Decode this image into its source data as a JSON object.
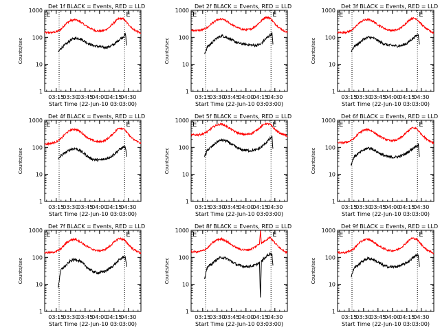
{
  "figure": {
    "xlabel": "Start Time (22-Jun-10 03:03:00)",
    "ylabel": "Counts/sec",
    "y_ticks": [
      1,
      10,
      100,
      1000
    ],
    "y_tick_labels": [
      "1",
      "10",
      "100",
      "1000"
    ],
    "x_tick_labels": [
      "03:15",
      "03:30",
      "03:45",
      "04:00",
      "04:15",
      "04:30"
    ],
    "marker_left": "E",
    "marker_right": "E",
    "colors": {
      "events": "#000000",
      "lld": "#ff0000",
      "markers": "#000000"
    }
  },
  "chart_data": [
    {
      "type": "line",
      "title": "Det 1f BLACK = Events, RED = LLD",
      "ylim": [
        1,
        1000
      ],
      "yscale": "log",
      "xlim": [
        "03:03",
        "04:43"
      ],
      "vlines": [
        "03:18",
        "04:26"
      ],
      "x": [
        "03:17",
        "03:20",
        "03:25",
        "03:30",
        "03:35",
        "03:40",
        "03:45",
        "03:50",
        "03:55",
        "04:00",
        "04:05",
        "04:10",
        "04:15",
        "04:20",
        "04:25",
        "04:27",
        "04:28"
      ],
      "series": [
        {
          "name": "LLD",
          "color": "#ff0000",
          "x": [
            "03:03",
            "03:10",
            "03:15",
            "03:20",
            "03:25",
            "03:30",
            "03:35",
            "03:40",
            "03:45",
            "03:50",
            "03:55",
            "04:00",
            "04:05",
            "04:10",
            "04:15",
            "04:20",
            "04:25",
            "04:30",
            "04:35",
            "04:40",
            "04:43"
          ],
          "values": [
            150,
            150,
            160,
            200,
            320,
            420,
            450,
            380,
            280,
            220,
            180,
            170,
            180,
            230,
            350,
            500,
            480,
            300,
            200,
            160,
            140
          ]
        },
        {
          "name": "Events",
          "color": "#000000",
          "values": [
            28,
            40,
            55,
            80,
            95,
            90,
            70,
            55,
            48,
            45,
            42,
            45,
            55,
            80,
            110,
            130,
            50
          ]
        }
      ]
    },
    {
      "type": "line",
      "title": "Det 2f BLACK = Events, RED = LLD",
      "ylim": [
        1,
        1000
      ],
      "yscale": "log",
      "xlim": [
        "03:03",
        "04:43"
      ],
      "vlines": [
        "03:18",
        "04:26"
      ],
      "x": [
        "03:17",
        "03:20",
        "03:25",
        "03:30",
        "03:35",
        "03:40",
        "03:45",
        "03:50",
        "03:55",
        "04:00",
        "04:05",
        "04:10",
        "04:15",
        "04:20",
        "04:25",
        "04:27",
        "04:28"
      ],
      "series": [
        {
          "name": "LLD",
          "color": "#ff0000",
          "x": [
            "03:03",
            "03:10",
            "03:15",
            "03:20",
            "03:25",
            "03:30",
            "03:35",
            "03:40",
            "03:45",
            "03:50",
            "03:55",
            "04:00",
            "04:05",
            "04:10",
            "04:15",
            "04:20",
            "04:25",
            "04:30",
            "04:35",
            "04:40",
            "04:43"
          ],
          "values": [
            180,
            180,
            190,
            230,
            340,
            440,
            470,
            400,
            300,
            240,
            200,
            190,
            200,
            260,
            380,
            560,
            520,
            320,
            220,
            170,
            150
          ]
        },
        {
          "name": "Events",
          "color": "#000000",
          "values": [
            25,
            45,
            65,
            95,
            115,
            100,
            80,
            65,
            58,
            55,
            52,
            50,
            55,
            85,
            120,
            140,
            55
          ]
        }
      ]
    },
    {
      "type": "line",
      "title": "Det 3f BLACK = Events, RED = LLD",
      "ylim": [
        1,
        1000
      ],
      "yscale": "log",
      "xlim": [
        "03:03",
        "04:43"
      ],
      "vlines": [
        "03:18",
        "04:26"
      ],
      "x": [
        "03:17",
        "03:20",
        "03:25",
        "03:30",
        "03:35",
        "03:40",
        "03:45",
        "03:50",
        "03:55",
        "04:00",
        "04:05",
        "04:10",
        "04:15",
        "04:20",
        "04:25",
        "04:27",
        "04:28"
      ],
      "series": [
        {
          "name": "LLD",
          "color": "#ff0000",
          "x": [
            "03:03",
            "03:10",
            "03:15",
            "03:20",
            "03:25",
            "03:30",
            "03:35",
            "03:40",
            "03:45",
            "03:50",
            "03:55",
            "04:00",
            "04:05",
            "04:10",
            "04:15",
            "04:20",
            "04:25",
            "04:30",
            "04:35",
            "04:40",
            "04:43"
          ],
          "values": [
            150,
            150,
            165,
            210,
            330,
            430,
            460,
            390,
            290,
            230,
            190,
            180,
            190,
            240,
            360,
            510,
            490,
            310,
            210,
            165,
            145
          ]
        },
        {
          "name": "Events",
          "color": "#000000",
          "values": [
            30,
            45,
            60,
            85,
            100,
            95,
            75,
            60,
            52,
            50,
            48,
            50,
            60,
            85,
            115,
            125,
            55
          ]
        }
      ]
    },
    {
      "type": "line",
      "title": "Det 4f BLACK = Events, RED = LLD",
      "ylim": [
        1,
        1000
      ],
      "yscale": "log",
      "xlim": [
        "03:03",
        "04:43"
      ],
      "vlines": [
        "03:18",
        "04:26"
      ],
      "x": [
        "03:17",
        "03:20",
        "03:25",
        "03:30",
        "03:35",
        "03:40",
        "03:45",
        "03:50",
        "03:55",
        "04:00",
        "04:05",
        "04:10",
        "04:15",
        "04:20",
        "04:25",
        "04:27",
        "04:28"
      ],
      "series": [
        {
          "name": "LLD",
          "color": "#ff0000",
          "x": [
            "03:03",
            "03:10",
            "03:15",
            "03:20",
            "03:25",
            "03:30",
            "03:35",
            "03:40",
            "03:45",
            "03:50",
            "03:55",
            "04:00",
            "04:05",
            "04:10",
            "04:15",
            "04:20",
            "04:25",
            "04:30",
            "04:35",
            "04:40",
            "04:43"
          ],
          "values": [
            130,
            140,
            160,
            210,
            330,
            440,
            470,
            380,
            270,
            200,
            170,
            160,
            175,
            230,
            350,
            520,
            500,
            300,
            200,
            160,
            140
          ]
        },
        {
          "name": "Events",
          "color": "#000000",
          "values": [
            35,
            50,
            65,
            85,
            90,
            75,
            55,
            40,
            35,
            34,
            36,
            42,
            55,
            80,
            105,
            95,
            45
          ]
        }
      ]
    },
    {
      "type": "line",
      "title": "Det 5f BLACK = Events, RED = LLD",
      "ylim": [
        1,
        1000
      ],
      "yscale": "log",
      "xlim": [
        "03:03",
        "04:43"
      ],
      "vlines": [
        "03:18",
        "04:26"
      ],
      "x": [
        "03:17",
        "03:20",
        "03:25",
        "03:30",
        "03:35",
        "03:40",
        "03:45",
        "03:50",
        "03:55",
        "04:00",
        "04:05",
        "04:10",
        "04:15",
        "04:20",
        "04:25",
        "04:27",
        "04:28"
      ],
      "series": [
        {
          "name": "LLD",
          "color": "#ff0000",
          "x": [
            "03:03",
            "03:10",
            "03:15",
            "03:20",
            "03:25",
            "03:30",
            "03:35",
            "03:40",
            "03:45",
            "03:50",
            "03:55",
            "04:00",
            "04:05",
            "04:10",
            "04:15",
            "04:20",
            "04:25",
            "04:30",
            "04:35",
            "04:40",
            "04:43"
          ],
          "values": [
            290,
            290,
            310,
            380,
            540,
            680,
            720,
            600,
            450,
            360,
            310,
            300,
            320,
            400,
            560,
            760,
            720,
            460,
            340,
            290,
            260
          ]
        },
        {
          "name": "Events",
          "color": "#000000",
          "values": [
            45,
            80,
            110,
            160,
            190,
            170,
            130,
            100,
            82,
            78,
            76,
            80,
            95,
            140,
            210,
            240,
            90
          ]
        }
      ]
    },
    {
      "type": "line",
      "title": "Det 6f BLACK = Events, RED = LLD",
      "ylim": [
        1,
        1000
      ],
      "yscale": "log",
      "xlim": [
        "03:03",
        "04:43"
      ],
      "vlines": [
        "03:18",
        "04:26"
      ],
      "x": [
        "03:17",
        "03:20",
        "03:25",
        "03:30",
        "03:35",
        "03:40",
        "03:45",
        "03:50",
        "03:55",
        "04:00",
        "04:05",
        "04:10",
        "04:15",
        "04:20",
        "04:25",
        "04:27",
        "04:28"
      ],
      "series": [
        {
          "name": "LLD",
          "color": "#ff0000",
          "x": [
            "03:03",
            "03:10",
            "03:15",
            "03:20",
            "03:25",
            "03:30",
            "03:35",
            "03:40",
            "03:45",
            "03:50",
            "03:55",
            "04:00",
            "04:05",
            "04:10",
            "04:15",
            "04:20",
            "04:25",
            "04:30",
            "04:35",
            "04:40",
            "04:43"
          ],
          "values": [
            150,
            150,
            165,
            210,
            330,
            430,
            460,
            380,
            280,
            220,
            185,
            175,
            190,
            245,
            365,
            520,
            500,
            310,
            210,
            165,
            145
          ]
        },
        {
          "name": "Events",
          "color": "#000000",
          "values": [
            22,
            45,
            60,
            80,
            95,
            85,
            65,
            52,
            45,
            43,
            44,
            50,
            62,
            85,
            115,
            120,
            45
          ]
        }
      ]
    },
    {
      "type": "line",
      "title": "Det 7f BLACK = Events, RED = LLD",
      "ylim": [
        1,
        1000
      ],
      "yscale": "log",
      "xlim": [
        "03:03",
        "04:43"
      ],
      "vlines": [
        "03:18",
        "04:26"
      ],
      "x": [
        "03:17",
        "03:20",
        "03:25",
        "03:30",
        "03:35",
        "03:40",
        "03:45",
        "03:50",
        "03:55",
        "04:00",
        "04:05",
        "04:10",
        "04:15",
        "04:20",
        "04:25",
        "04:27",
        "04:28"
      ],
      "series": [
        {
          "name": "LLD",
          "color": "#ff0000",
          "x": [
            "03:03",
            "03:10",
            "03:15",
            "03:20",
            "03:25",
            "03:30",
            "03:35",
            "03:40",
            "03:45",
            "03:50",
            "03:55",
            "04:00",
            "04:05",
            "04:10",
            "04:15",
            "04:20",
            "04:25",
            "04:30",
            "04:35",
            "04:40",
            "04:43"
          ],
          "values": [
            150,
            150,
            165,
            210,
            330,
            440,
            470,
            380,
            280,
            220,
            185,
            175,
            190,
            245,
            365,
            500,
            460,
            300,
            200,
            160,
            140
          ]
        },
        {
          "name": "Events",
          "color": "#000000",
          "values": [
            8,
            35,
            50,
            75,
            85,
            72,
            50,
            35,
            28,
            27,
            30,
            38,
            52,
            78,
            105,
            98,
            45
          ]
        }
      ]
    },
    {
      "type": "line",
      "title": "Det 8f BLACK = Events, RED = LLD",
      "ylim": [
        1,
        1000
      ],
      "yscale": "log",
      "xlim": [
        "03:03",
        "04:43"
      ],
      "vlines": [
        "03:18",
        "04:26"
      ],
      "x": [
        "03:17",
        "03:20",
        "03:25",
        "03:30",
        "03:35",
        "03:40",
        "03:45",
        "03:50",
        "03:55",
        "04:00",
        "04:05",
        "04:10",
        "04:14",
        "04:15",
        "04:16",
        "04:20",
        "04:25",
        "04:27",
        "04:28"
      ],
      "series": [
        {
          "name": "LLD",
          "color": "#ff0000",
          "x": [
            "03:03",
            "03:10",
            "03:15",
            "03:20",
            "03:25",
            "03:30",
            "03:35",
            "03:40",
            "03:45",
            "03:50",
            "03:55",
            "04:00",
            "04:05",
            "04:10",
            "04:14",
            "04:15",
            "04:16",
            "04:20",
            "04:25",
            "04:30",
            "04:35",
            "04:40",
            "04:43"
          ],
          "values": [
            160,
            160,
            175,
            220,
            340,
            450,
            480,
            390,
            290,
            230,
            195,
            185,
            200,
            250,
            320,
            1000,
            330,
            420,
            560,
            340,
            230,
            170,
            150
          ]
        },
        {
          "name": "Events",
          "color": "#000000",
          "values": [
            15,
            45,
            60,
            85,
            100,
            90,
            70,
            55,
            48,
            46,
            47,
            52,
            65,
            3,
            70,
            100,
            140,
            130,
            50
          ]
        }
      ]
    },
    {
      "type": "line",
      "title": "Det 9f BLACK = Events, RED = LLD",
      "ylim": [
        1,
        1000
      ],
      "yscale": "log",
      "xlim": [
        "03:03",
        "04:43"
      ],
      "vlines": [
        "03:18",
        "04:26"
      ],
      "x": [
        "03:17",
        "03:20",
        "03:25",
        "03:30",
        "03:35",
        "03:40",
        "03:45",
        "03:50",
        "03:55",
        "04:00",
        "04:05",
        "04:10",
        "04:15",
        "04:20",
        "04:25",
        "04:27",
        "04:28"
      ],
      "series": [
        {
          "name": "LLD",
          "color": "#ff0000",
          "x": [
            "03:03",
            "03:10",
            "03:15",
            "03:20",
            "03:25",
            "03:30",
            "03:35",
            "03:40",
            "03:45",
            "03:50",
            "03:55",
            "04:00",
            "04:05",
            "04:10",
            "04:15",
            "04:20",
            "04:25",
            "04:30",
            "04:35",
            "04:40",
            "04:43"
          ],
          "values": [
            150,
            150,
            165,
            210,
            330,
            440,
            470,
            380,
            280,
            220,
            185,
            175,
            190,
            245,
            365,
            510,
            480,
            300,
            200,
            160,
            140
          ]
        },
        {
          "name": "Events",
          "color": "#000000",
          "values": [
            18,
            40,
            55,
            78,
            92,
            84,
            66,
            52,
            45,
            44,
            46,
            52,
            64,
            88,
            118,
            115,
            45
          ]
        }
      ]
    }
  ]
}
